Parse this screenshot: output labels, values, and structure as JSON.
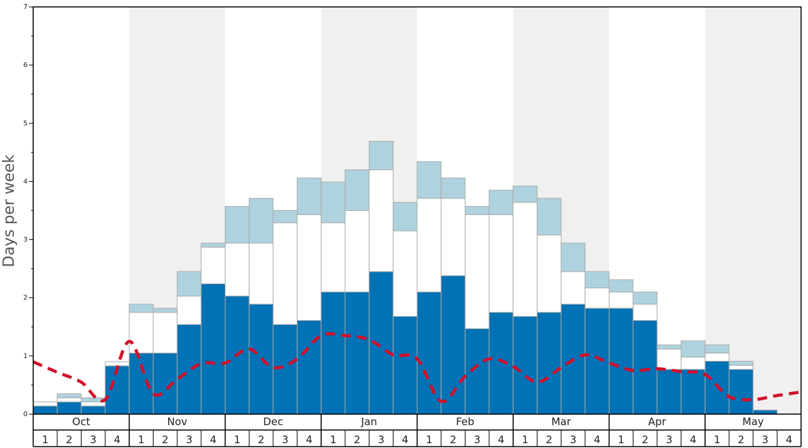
{
  "chart_data": {
    "type": "bar",
    "ylabel": "Days per week",
    "ylim": [
      0,
      7
    ],
    "yticks": [
      "0",
      "1",
      "2",
      "3",
      "4",
      "5",
      "6",
      "7"
    ],
    "months": [
      "Oct",
      "Nov",
      "Dec",
      "Jan",
      "Feb",
      "Mar",
      "Apr",
      "May"
    ],
    "week_labels": [
      "1",
      "2",
      "3",
      "4"
    ],
    "colors": {
      "dark": "#0072b5",
      "white": "#ffffff",
      "light": "#aed3df",
      "line": "#d0102c",
      "band": "#f0f0f0",
      "bar_border": "#aaaaaa"
    },
    "series": [
      {
        "values": [
          0.14,
          0.21,
          0.14,
          0.83,
          1.05,
          1.05,
          1.54,
          2.24,
          2.03,
          1.89,
          1.54,
          1.61,
          2.1,
          2.1,
          2.45,
          1.68,
          2.1,
          2.38,
          1.47,
          1.75,
          1.68,
          1.75,
          1.89,
          1.82,
          1.82,
          1.61,
          0.77,
          0.77,
          0.91,
          0.77,
          0.07,
          0
        ]
      },
      {
        "values": [
          0.07,
          0.07,
          0.07,
          0.07,
          0.7,
          0.7,
          0.49,
          0.63,
          0.91,
          1.05,
          1.75,
          1.82,
          1.19,
          1.4,
          1.75,
          1.47,
          1.61,
          1.33,
          1.96,
          1.68,
          1.96,
          1.33,
          0.56,
          0.35,
          0.28,
          0.28,
          0.35,
          0.21,
          0.14,
          0.07,
          0,
          0
        ]
      },
      {
        "values": [
          0,
          0.07,
          0.07,
          0,
          0.14,
          0.07,
          0.42,
          0.07,
          0.63,
          0.77,
          0.21,
          0.63,
          0.7,
          0.7,
          0.49,
          0.49,
          0.63,
          0.35,
          0.14,
          0.42,
          0.28,
          0.63,
          0.49,
          0.28,
          0.21,
          0.21,
          0.07,
          0.28,
          0.14,
          0.07,
          0,
          0
        ]
      },
      {
        "type": "line",
        "values": [
          0.9,
          0.72,
          0.55,
          0.25,
          1.25,
          0.35,
          0.6,
          0.87,
          0.88,
          1.12,
          0.8,
          0.95,
          1.35,
          1.35,
          1.28,
          1.02,
          0.95,
          0.22,
          0.65,
          0.95,
          0.82,
          0.55,
          0.8,
          1.02,
          0.88,
          0.75,
          0.78,
          0.73,
          0.68,
          0.3,
          0.25,
          0.32,
          0.38
        ]
      }
    ]
  }
}
